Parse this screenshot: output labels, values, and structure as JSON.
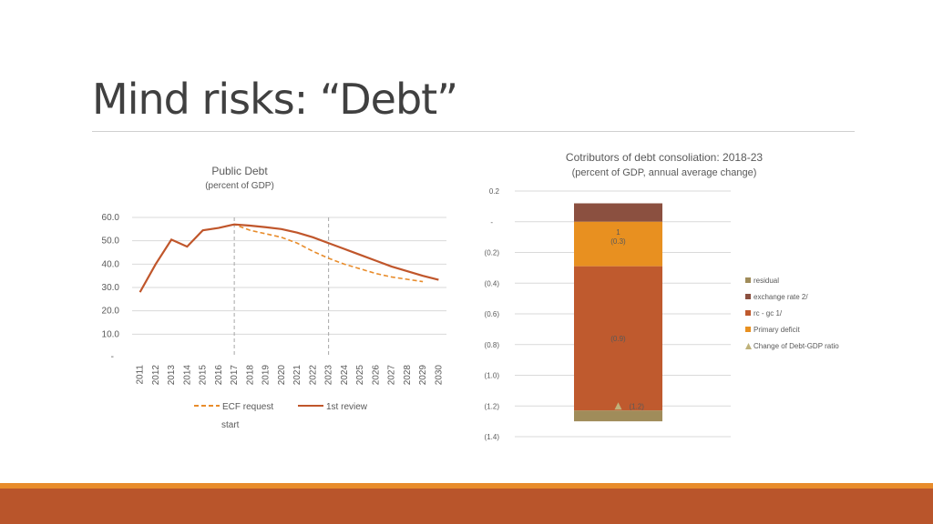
{
  "slide": {
    "title": "Mind risks: “Debt”"
  },
  "colors": {
    "accent_bar": "#b9552b",
    "accent_bar_top": "#e88c2b"
  },
  "chart_data": [
    {
      "type": "line",
      "title": "Public Debt",
      "subtitle": "(percent of GDP)",
      "x": [
        "2011",
        "2012",
        "2013",
        "2014",
        "2015",
        "2016",
        "2017",
        "2018",
        "2019",
        "2020",
        "2021",
        "2022",
        "2023",
        "2024",
        "2025",
        "2026",
        "2027",
        "2028",
        "2029",
        "2030"
      ],
      "yticks": [
        "-",
        "10.0",
        "20.0",
        "30.0",
        "40.0",
        "50.0",
        "60.0"
      ],
      "ylim": [
        0,
        60
      ],
      "grid": true,
      "legend_position": "bottom",
      "reference_lines": [
        "2017",
        "2023"
      ],
      "annotation": "start",
      "series": [
        {
          "name": "ECF request",
          "style": "dashed",
          "color": "#e88c2b",
          "values": [
            28.0,
            40.0,
            50.5,
            47.5,
            54.5,
            55.5,
            57.0,
            54.5,
            53.0,
            51.5,
            49.0,
            45.5,
            42.5,
            40.0,
            38.0,
            36.0,
            34.5,
            33.5,
            32.5,
            null
          ]
        },
        {
          "name": "1st review",
          "style": "solid",
          "color": "#c0562b",
          "values": [
            28.0,
            40.0,
            50.5,
            47.5,
            54.5,
            55.5,
            57.0,
            56.5,
            55.8,
            55.0,
            53.5,
            51.5,
            49.0,
            46.5,
            44.0,
            41.5,
            39.0,
            37.0,
            35.0,
            33.3
          ]
        }
      ]
    },
    {
      "type": "bar",
      "stacked": true,
      "title": "Cotributors of debt consoliation: 2018-23",
      "subtitle": "(percent of GDP, annual average change)",
      "yticks": [
        "0.2",
        "-",
        "(0.2)",
        "(0.4)",
        "(0.6)",
        "(0.8)",
        "(1.0)",
        "(1.2)",
        "(1.4)"
      ],
      "ylim": [
        -1.4,
        0.2
      ],
      "grid": true,
      "legend_position": "right",
      "series": [
        {
          "name": "residual",
          "color": "#a08c5a",
          "value": -0.07,
          "label": ""
        },
        {
          "name": "exchange rate 2/",
          "color": "#8b5040",
          "value": 0.12,
          "label": ""
        },
        {
          "name": "rc - gc 1/",
          "color": "#bf5a2e",
          "value": -0.94,
          "label": "(0.9)"
        },
        {
          "name": "Primary deficit",
          "color": "#e89020",
          "value": -0.29,
          "label": "(0.3)"
        },
        {
          "name": "Change of Debt-GDP ratio",
          "color": "#bfb27a",
          "value": -1.2,
          "label": "(1.2)",
          "marker": "triangle"
        }
      ],
      "extra_labels": [
        "1"
      ]
    }
  ]
}
